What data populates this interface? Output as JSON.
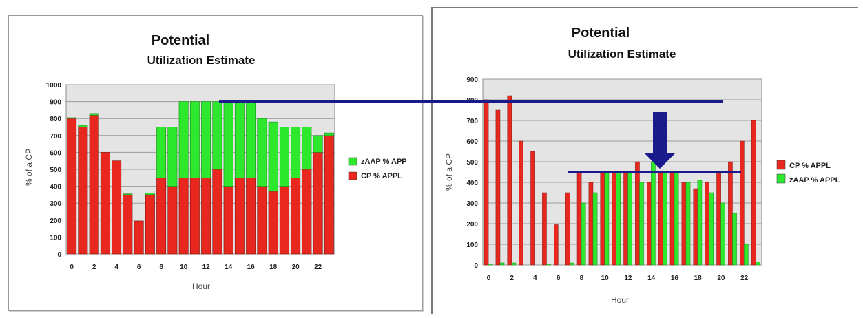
{
  "chart_data": [
    {
      "type": "bar",
      "stacked": true,
      "title": "Potential",
      "subtitle": "Utilization Estimate",
      "xlabel": "Hour",
      "ylabel": "% of a CP",
      "ylim": [
        0,
        1000
      ],
      "yticks": [
        0,
        100,
        200,
        300,
        400,
        500,
        600,
        700,
        800,
        900,
        1000
      ],
      "categories": [
        0,
        1,
        2,
        3,
        4,
        5,
        6,
        7,
        8,
        9,
        10,
        11,
        12,
        13,
        14,
        15,
        16,
        17,
        18,
        19,
        20,
        21,
        22,
        23
      ],
      "x_tick_labels": [
        "0",
        "2",
        "4",
        "6",
        "8",
        "10",
        "12",
        "14",
        "16",
        "18",
        "20",
        "22"
      ],
      "legend": [
        "zAAP % APP",
        "CP % APPL"
      ],
      "legend_position": "right",
      "grid": true,
      "series": [
        {
          "name": "CP % APPL",
          "color": "#e8281e",
          "values": [
            800,
            750,
            820,
            600,
            550,
            350,
            195,
            350,
            450,
            400,
            450,
            450,
            450,
            500,
            400,
            450,
            450,
            400,
            370,
            400,
            450,
            500,
            600,
            700
          ]
        },
        {
          "name": "zAAP % APP",
          "color": "#2ee82e",
          "values": [
            5,
            10,
            10,
            0,
            0,
            5,
            0,
            10,
            300,
            350,
            450,
            450,
            450,
            400,
            500,
            450,
            450,
            400,
            410,
            350,
            300,
            250,
            100,
            15
          ]
        }
      ]
    },
    {
      "type": "bar",
      "stacked": false,
      "title": "Potential",
      "subtitle": "Utilization Estimate",
      "xlabel": "Hour",
      "ylabel": "% of a CP",
      "ylim": [
        0,
        900
      ],
      "yticks": [
        0,
        100,
        200,
        300,
        400,
        500,
        600,
        700,
        800,
        900
      ],
      "categories": [
        0,
        1,
        2,
        3,
        4,
        5,
        6,
        7,
        8,
        9,
        10,
        11,
        12,
        13,
        14,
        15,
        16,
        17,
        18,
        19,
        20,
        21,
        22,
        23
      ],
      "x_tick_labels": [
        "0",
        "2",
        "4",
        "6",
        "8",
        "10",
        "12",
        "14",
        "16",
        "18",
        "20",
        "22"
      ],
      "legend": [
        "CP % APPL",
        "zAAP % APPL"
      ],
      "legend_position": "right",
      "grid": true,
      "series": [
        {
          "name": "CP % APPL",
          "color": "#e8281e",
          "values": [
            800,
            750,
            820,
            600,
            550,
            350,
            195,
            350,
            450,
            400,
            450,
            450,
            450,
            500,
            400,
            450,
            450,
            400,
            370,
            400,
            450,
            500,
            600,
            700
          ]
        },
        {
          "name": "zAAP % APPL",
          "color": "#2ee82e",
          "values": [
            5,
            10,
            10,
            0,
            0,
            5,
            0,
            10,
            300,
            350,
            450,
            450,
            450,
            400,
            500,
            450,
            450,
            400,
            410,
            350,
            300,
            250,
            100,
            15
          ]
        }
      ]
    }
  ],
  "annotations": {
    "color": "#1a1a8c",
    "top_line_value": 900,
    "lower_line_value": 450
  }
}
